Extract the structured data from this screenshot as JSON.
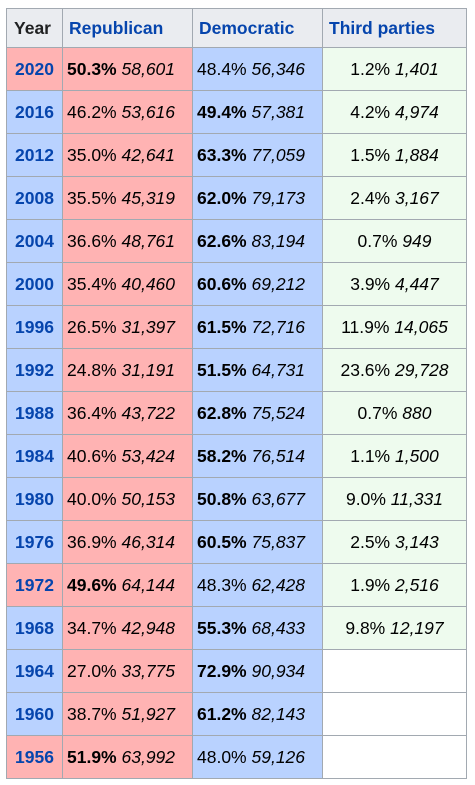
{
  "headers": {
    "year": "Year",
    "republican": "Republican",
    "democratic": "Democratic",
    "third": "Third parties"
  },
  "colors": {
    "republican": "#ffb3b3",
    "democratic": "#b9d2ff",
    "third": "#eefbee",
    "link": "#0645ad"
  },
  "rows": [
    {
      "year": "2020",
      "winner": "rep",
      "rep": {
        "pct": "50.3%",
        "votes": "58,601"
      },
      "dem": {
        "pct": "48.4%",
        "votes": "56,346"
      },
      "third": {
        "pct": "1.2%",
        "votes": "1,401"
      }
    },
    {
      "year": "2016",
      "winner": "dem",
      "rep": {
        "pct": "46.2%",
        "votes": "53,616"
      },
      "dem": {
        "pct": "49.4%",
        "votes": "57,381"
      },
      "third": {
        "pct": "4.2%",
        "votes": "4,974"
      }
    },
    {
      "year": "2012",
      "winner": "dem",
      "rep": {
        "pct": "35.0%",
        "votes": "42,641"
      },
      "dem": {
        "pct": "63.3%",
        "votes": "77,059"
      },
      "third": {
        "pct": "1.5%",
        "votes": "1,884"
      }
    },
    {
      "year": "2008",
      "winner": "dem",
      "rep": {
        "pct": "35.5%",
        "votes": "45,319"
      },
      "dem": {
        "pct": "62.0%",
        "votes": "79,173"
      },
      "third": {
        "pct": "2.4%",
        "votes": "3,167"
      }
    },
    {
      "year": "2004",
      "winner": "dem",
      "rep": {
        "pct": "36.6%",
        "votes": "48,761"
      },
      "dem": {
        "pct": "62.6%",
        "votes": "83,194"
      },
      "third": {
        "pct": "0.7%",
        "votes": "949"
      }
    },
    {
      "year": "2000",
      "winner": "dem",
      "rep": {
        "pct": "35.4%",
        "votes": "40,460"
      },
      "dem": {
        "pct": "60.6%",
        "votes": "69,212"
      },
      "third": {
        "pct": "3.9%",
        "votes": "4,447"
      }
    },
    {
      "year": "1996",
      "winner": "dem",
      "rep": {
        "pct": "26.5%",
        "votes": "31,397"
      },
      "dem": {
        "pct": "61.5%",
        "votes": "72,716"
      },
      "third": {
        "pct": "11.9%",
        "votes": "14,065"
      }
    },
    {
      "year": "1992",
      "winner": "dem",
      "rep": {
        "pct": "24.8%",
        "votes": "31,191"
      },
      "dem": {
        "pct": "51.5%",
        "votes": "64,731"
      },
      "third": {
        "pct": "23.6%",
        "votes": "29,728"
      }
    },
    {
      "year": "1988",
      "winner": "dem",
      "rep": {
        "pct": "36.4%",
        "votes": "43,722"
      },
      "dem": {
        "pct": "62.8%",
        "votes": "75,524"
      },
      "third": {
        "pct": "0.7%",
        "votes": "880"
      }
    },
    {
      "year": "1984",
      "winner": "dem",
      "rep": {
        "pct": "40.6%",
        "votes": "53,424"
      },
      "dem": {
        "pct": "58.2%",
        "votes": "76,514"
      },
      "third": {
        "pct": "1.1%",
        "votes": "1,500"
      }
    },
    {
      "year": "1980",
      "winner": "dem",
      "rep": {
        "pct": "40.0%",
        "votes": "50,153"
      },
      "dem": {
        "pct": "50.8%",
        "votes": "63,677"
      },
      "third": {
        "pct": "9.0%",
        "votes": "11,331"
      }
    },
    {
      "year": "1976",
      "winner": "dem",
      "rep": {
        "pct": "36.9%",
        "votes": "46,314"
      },
      "dem": {
        "pct": "60.5%",
        "votes": "75,837"
      },
      "third": {
        "pct": "2.5%",
        "votes": "3,143"
      }
    },
    {
      "year": "1972",
      "winner": "rep",
      "rep": {
        "pct": "49.6%",
        "votes": "64,144"
      },
      "dem": {
        "pct": "48.3%",
        "votes": "62,428"
      },
      "third": {
        "pct": "1.9%",
        "votes": "2,516"
      }
    },
    {
      "year": "1968",
      "winner": "dem",
      "rep": {
        "pct": "34.7%",
        "votes": "42,948"
      },
      "dem": {
        "pct": "55.3%",
        "votes": "68,433"
      },
      "third": {
        "pct": "9.8%",
        "votes": "12,197"
      }
    },
    {
      "year": "1964",
      "winner": "dem",
      "rep": {
        "pct": "27.0%",
        "votes": "33,775"
      },
      "dem": {
        "pct": "72.9%",
        "votes": "90,934"
      },
      "third": null
    },
    {
      "year": "1960",
      "winner": "dem",
      "rep": {
        "pct": "38.7%",
        "votes": "51,927"
      },
      "dem": {
        "pct": "61.2%",
        "votes": "82,143"
      },
      "third": null
    },
    {
      "year": "1956",
      "winner": "rep",
      "rep": {
        "pct": "51.9%",
        "votes": "63,992"
      },
      "dem": {
        "pct": "48.0%",
        "votes": "59,126"
      },
      "third": null
    }
  ]
}
